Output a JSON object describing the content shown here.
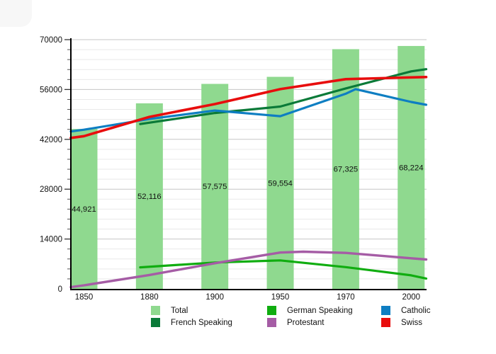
{
  "chart_data": {
    "type": "bar+line",
    "title": "",
    "categories": [
      "1850",
      "1880",
      "1900",
      "1950",
      "1970",
      "2000"
    ],
    "bars": {
      "name": "Total",
      "color": "#8fd98f",
      "values": [
        44921,
        52116,
        57575,
        59554,
        67325,
        68224
      ],
      "labels": [
        "44,921",
        "52,116",
        "57,575",
        "59,554",
        "67,325",
        "68,224"
      ]
    },
    "lines": [
      {
        "name": "German Speaking",
        "color": "#10ad10",
        "width": 3.2,
        "points": [
          [
            0.86,
            6050
          ],
          [
            2,
            7400
          ],
          [
            3,
            8000
          ],
          [
            4,
            6100
          ],
          [
            5,
            3800
          ],
          [
            5.23,
            2900
          ]
        ]
      },
      {
        "name": "Protestant",
        "color": "#a55ca5",
        "width": 3.4,
        "points": [
          [
            -0.2,
            500
          ],
          [
            0,
            1000
          ],
          [
            1,
            3900
          ],
          [
            2,
            7200
          ],
          [
            3,
            10200
          ],
          [
            3.35,
            10450
          ],
          [
            4,
            10100
          ],
          [
            5,
            8600
          ],
          [
            5.23,
            8250
          ]
        ]
      },
      {
        "name": "French Speaking",
        "color": "#0a7a38",
        "width": 3.2,
        "points": [
          [
            0.86,
            46300
          ],
          [
            2,
            49400
          ],
          [
            3,
            51200
          ],
          [
            4,
            56300
          ],
          [
            5,
            61100
          ],
          [
            5.23,
            61700
          ]
        ]
      },
      {
        "name": "Catholic",
        "color": "#0e7ec2",
        "width": 3.2,
        "points": [
          [
            -0.2,
            44200
          ],
          [
            0,
            44700
          ],
          [
            1,
            47700
          ],
          [
            2,
            50100
          ],
          [
            3,
            48500
          ],
          [
            4,
            54800
          ],
          [
            4.15,
            56100
          ],
          [
            5,
            52500
          ],
          [
            5.23,
            51700
          ]
        ]
      },
      {
        "name": "Swiss",
        "color": "#e80d0d",
        "width": 3.6,
        "points": [
          [
            -0.2,
            42400
          ],
          [
            0,
            42900
          ],
          [
            1,
            48300
          ],
          [
            2,
            51900
          ],
          [
            3,
            56100
          ],
          [
            4,
            58900
          ],
          [
            5,
            59400
          ],
          [
            5.23,
            59500
          ]
        ]
      }
    ],
    "y_axis": {
      "min": 0,
      "max": 70000,
      "major_step": 14000,
      "minor_step": 2800,
      "tick_labels": [
        "0",
        "14000",
        "28000",
        "42000",
        "56000",
        "70000"
      ]
    },
    "x_axis": {
      "tick_labels": [
        "1850",
        "1880",
        "1900",
        "1950",
        "1970",
        "2000"
      ]
    },
    "grid": "horizontal major+minor",
    "legend_position": "bottom"
  },
  "legend": {
    "items": [
      {
        "label": "Total",
        "color": "#8fd98f"
      },
      {
        "label": "German Speaking",
        "color": "#10ad10"
      },
      {
        "label": "Catholic",
        "color": "#0e7ec2"
      },
      {
        "label": "French Speaking",
        "color": "#0a7a38"
      },
      {
        "label": "Protestant",
        "color": "#a55ca5"
      },
      {
        "label": "Swiss",
        "color": "#e80d0d"
      }
    ]
  }
}
